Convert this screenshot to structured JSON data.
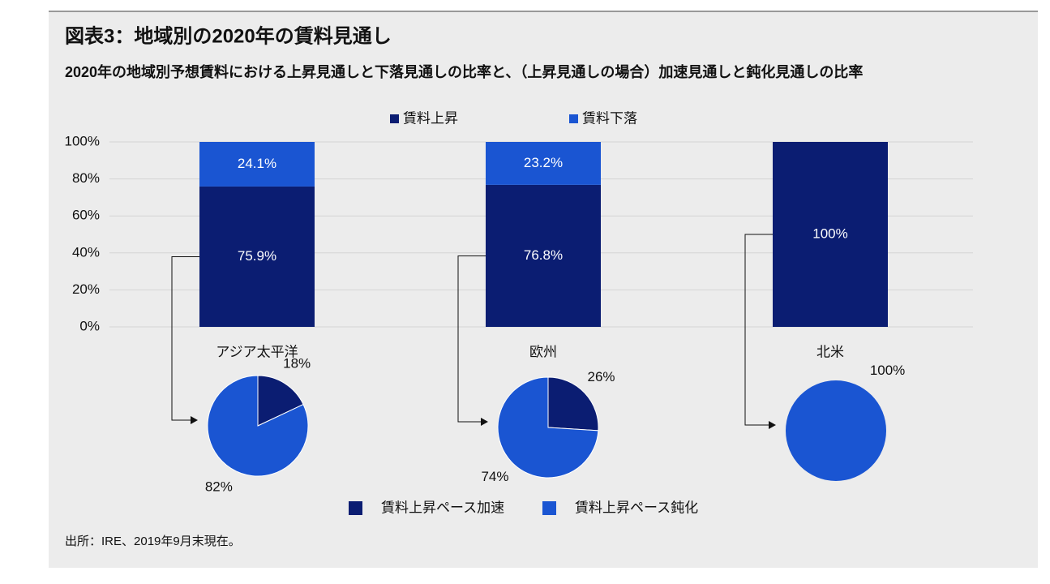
{
  "chart_data": [
    {
      "type": "bar",
      "title": "図表3：地域別の2020年の賃料見通し",
      "subtitle": "2020年の地域別予想賃料における上昇見通しと下落見通しの比率と、（上昇見通しの場合）加速見通しと鈍化見通しの比率",
      "source": "出所：IRE、2019年9月末現在。",
      "categories": [
        "アジア太平洋",
        "欧州",
        "北米"
      ],
      "series": [
        {
          "name": "賃料上昇",
          "color": "#0b1d72",
          "values": [
            75.9,
            76.8,
            100
          ],
          "value_labels": [
            "75.9%",
            "76.8%",
            "100%"
          ]
        },
        {
          "name": "賃料下落",
          "color": "#1a55d2",
          "values": [
            24.1,
            23.2,
            0
          ],
          "value_labels": [
            "24.1%",
            "23.2%",
            null
          ]
        }
      ],
      "ylim": [
        0,
        100
      ],
      "yticks": [
        {
          "value": 0,
          "label": "0%"
        },
        {
          "value": 20,
          "label": "20%"
        },
        {
          "value": 40,
          "label": "40%"
        },
        {
          "value": 60,
          "label": "60%"
        },
        {
          "value": 80,
          "label": "80%"
        },
        {
          "value": 100,
          "label": "100%"
        }
      ],
      "grid": true
    },
    {
      "type": "pie",
      "categories": [
        "賃料上昇ペース加速",
        "賃料上昇ペース鈍化"
      ],
      "colors": [
        "#0b1d72",
        "#1a55d2"
      ],
      "pies": [
        {
          "values": [
            18,
            82
          ],
          "value_labels": [
            "18%",
            "82%"
          ]
        },
        {
          "values": [
            26,
            74
          ],
          "value_labels": [
            "26%",
            "74%"
          ]
        },
        {
          "values": [
            0,
            100
          ],
          "value_labels": [
            null,
            "100%"
          ]
        }
      ]
    }
  ]
}
